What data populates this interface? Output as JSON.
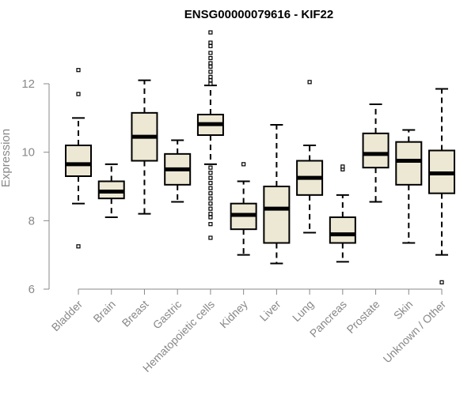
{
  "chart_data": {
    "type": "boxplot",
    "title": "ENSG00000079616 - KIF22",
    "xlabel": "",
    "ylabel": "Expression",
    "ylim": [
      6,
      13.6
    ],
    "yticks": [
      6,
      8,
      10,
      12
    ],
    "categories": [
      "Bladder",
      "Brain",
      "Breast",
      "Gastric",
      "Hematopoietic cells",
      "Kidney",
      "Liver",
      "Lung",
      "Pancreas",
      "Prostate",
      "Skin",
      "Unknown / Other"
    ],
    "boxes": [
      {
        "whisker_low": 8.5,
        "q1": 9.3,
        "median": 9.65,
        "q3": 10.2,
        "whisker_high": 11.0,
        "outliers": [
          7.25,
          11.7,
          12.4
        ]
      },
      {
        "whisker_low": 8.1,
        "q1": 8.65,
        "median": 8.85,
        "q3": 9.15,
        "whisker_high": 9.65,
        "outliers": []
      },
      {
        "whisker_low": 8.2,
        "q1": 9.75,
        "median": 10.45,
        "q3": 11.15,
        "whisker_high": 12.1,
        "outliers": []
      },
      {
        "whisker_low": 8.55,
        "q1": 9.05,
        "median": 9.5,
        "q3": 9.95,
        "whisker_high": 10.35,
        "outliers": []
      },
      {
        "whisker_low": 9.65,
        "q1": 10.5,
        "median": 10.82,
        "q3": 11.1,
        "whisker_high": 11.95,
        "outliers": [
          7.5,
          7.9,
          8.1,
          8.2,
          8.35,
          8.5,
          8.65,
          8.8,
          8.95,
          9.1,
          9.25,
          9.4,
          9.55,
          12.0,
          12.1,
          12.2,
          12.35,
          12.5,
          12.6,
          12.75,
          12.9,
          13.1,
          13.2,
          13.5
        ]
      },
      {
        "whisker_low": 7.0,
        "q1": 7.75,
        "median": 8.17,
        "q3": 8.5,
        "whisker_high": 9.15,
        "outliers": [
          9.65
        ]
      },
      {
        "whisker_low": 6.75,
        "q1": 7.35,
        "median": 8.35,
        "q3": 9.0,
        "whisker_high": 10.8,
        "outliers": []
      },
      {
        "whisker_low": 7.65,
        "q1": 8.75,
        "median": 9.25,
        "q3": 9.75,
        "whisker_high": 10.2,
        "outliers": [
          12.05
        ]
      },
      {
        "whisker_low": 6.8,
        "q1": 7.35,
        "median": 7.6,
        "q3": 8.1,
        "whisker_high": 8.75,
        "outliers": [
          9.5,
          9.58
        ]
      },
      {
        "whisker_low": 8.55,
        "q1": 9.55,
        "median": 9.95,
        "q3": 10.55,
        "whisker_high": 11.4,
        "outliers": []
      },
      {
        "whisker_low": 7.35,
        "q1": 9.05,
        "median": 9.75,
        "q3": 10.3,
        "whisker_high": 10.65,
        "outliers": []
      },
      {
        "whisker_low": 7.0,
        "q1": 8.8,
        "median": 9.38,
        "q3": 10.05,
        "whisker_high": 11.85,
        "outliers": [
          6.2
        ]
      }
    ],
    "box_fill": "#ede8d4",
    "box_stroke": "#000000",
    "axis_color": "#888888",
    "grid": false,
    "legend": "none"
  }
}
